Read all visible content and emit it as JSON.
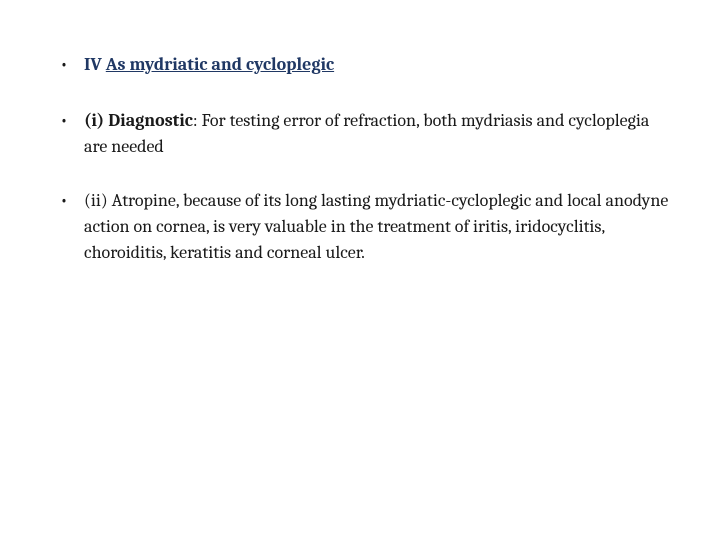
{
  "slide": {
    "background_color": "#ffffff",
    "text_color": "#1a1a1a",
    "accent_color": "#203864",
    "font_family": "Cambria, Georgia, serif",
    "base_fontsize": 18,
    "bullets": [
      {
        "prefix": "IV ",
        "heading": "As mydriatic and cycloplegic",
        "body": ""
      },
      {
        "bold_lead": "(i) Diagnostic",
        "body": ": For testing error of refraction, both mydriasis and cycloplegia are needed"
      },
      {
        "bold_lead": "",
        "body": "(ii) Atropine, because of its long lasting mydriatic-cycloplegic and local anodyne action on cornea, is very valuable in the treatment of iritis, iridocyclitis, choroiditis, keratitis and corneal ulcer."
      }
    ]
  }
}
